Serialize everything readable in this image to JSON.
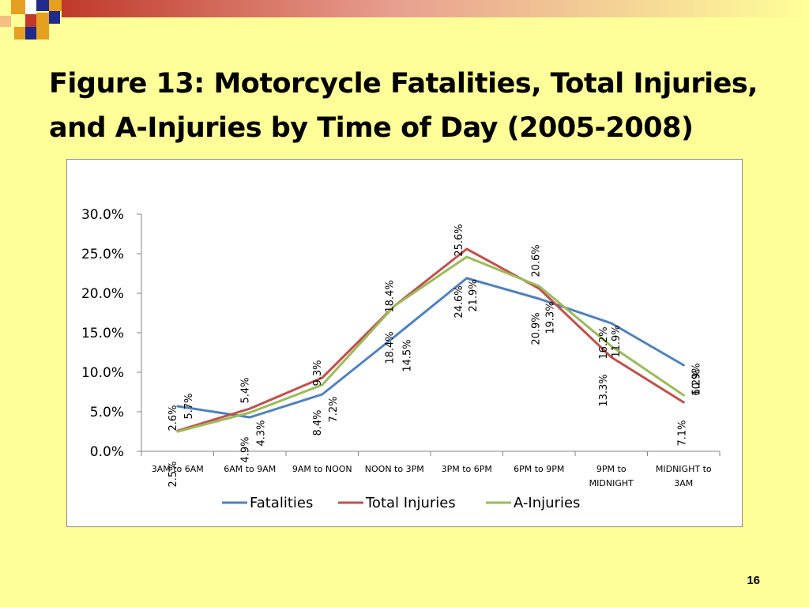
{
  "slide": {
    "title": "Figure 13: Motorcycle Fatalities, Total Injuries, and A-Injuries by Time of Day (2005-2008)",
    "page_number": "16",
    "background_color": "#FFFF99",
    "accent_colors": [
      "#CC3300",
      "#E6A020",
      "#1F2A8C"
    ]
  },
  "chart_data": {
    "type": "line",
    "categories": [
      [
        "3AM to 6AM"
      ],
      [
        "6AM to 9AM"
      ],
      [
        "9AM to NOON"
      ],
      [
        "NOON to 3PM"
      ],
      [
        "3PM to 6PM"
      ],
      [
        "6PM to 9PM"
      ],
      [
        "9PM to",
        "MIDNIGHT"
      ],
      [
        "MIDNIGHT to",
        "3AM"
      ]
    ],
    "series": [
      {
        "name": "Fatalities",
        "color": "#4F81BD",
        "values": [
          5.7,
          4.3,
          7.2,
          14.5,
          21.9,
          19.3,
          16.2,
          10.9
        ],
        "labels": [
          "5.7%",
          "4.3%",
          "7.2%",
          "14.5%",
          "21.9%",
          "19.3%",
          "16.2%",
          "10.9%"
        ]
      },
      {
        "name": "Total Injuries",
        "color": "#C0504D",
        "values": [
          2.6,
          5.4,
          9.3,
          18.4,
          25.6,
          20.6,
          11.9,
          6.2
        ],
        "labels": [
          "2.6%",
          "5.4%",
          "9.3%",
          "18.4%",
          "25.6%",
          "20.6%",
          "11.9%",
          "6.2%"
        ]
      },
      {
        "name": "A-Injuries",
        "color": "#9BBB59",
        "values": [
          2.5,
          4.9,
          8.4,
          18.4,
          24.6,
          20.9,
          13.3,
          7.1
        ],
        "labels": [
          "2.5%",
          "4.9%",
          "8.4%",
          "18.4%",
          "24.6%",
          "20.9%",
          "13.3%",
          "7.1%"
        ]
      }
    ],
    "y_ticks": [
      "0.0%",
      "5.0%",
      "10.0%",
      "15.0%",
      "20.0%",
      "25.0%",
      "30.0%"
    ],
    "ylim": [
      0,
      30
    ],
    "grid": false,
    "legend_position": "bottom"
  }
}
